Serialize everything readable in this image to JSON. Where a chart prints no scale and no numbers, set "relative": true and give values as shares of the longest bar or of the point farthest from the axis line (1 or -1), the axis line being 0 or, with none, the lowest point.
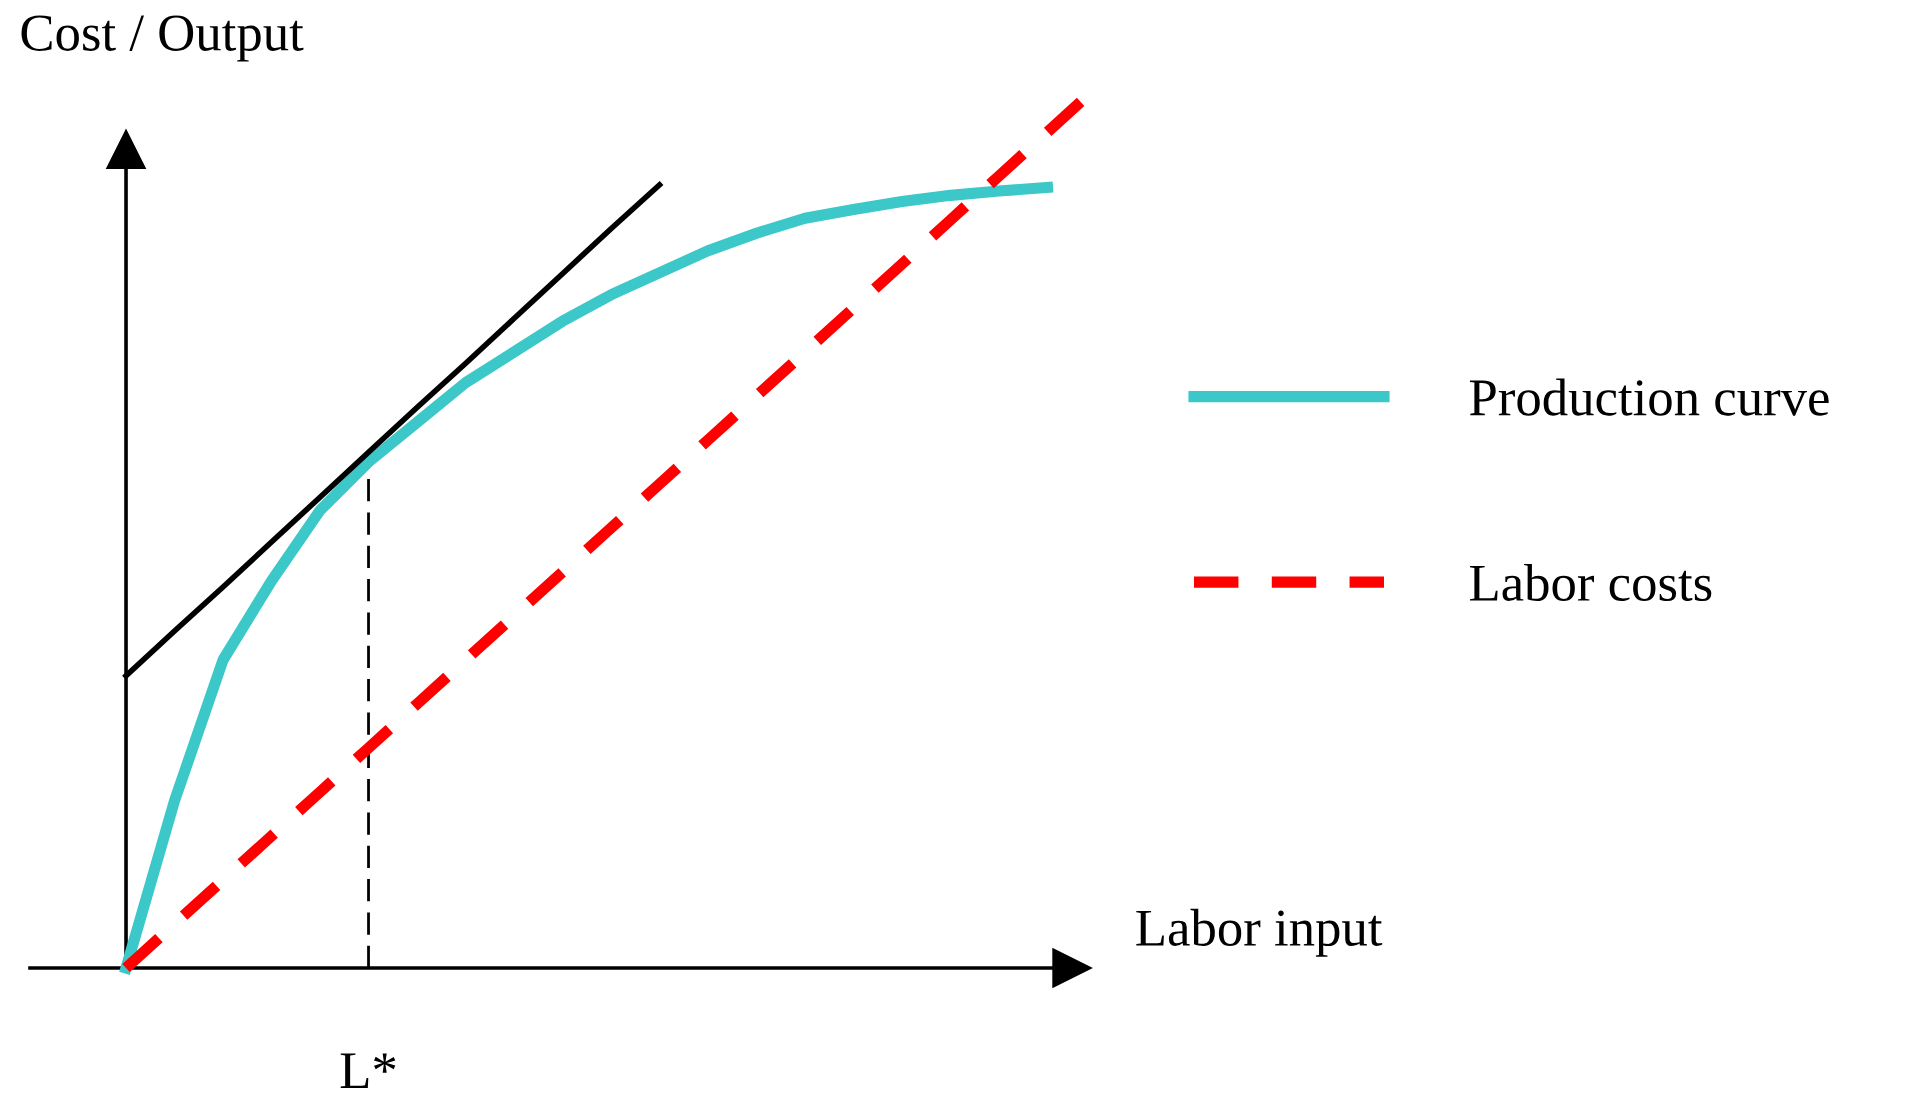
{
  "chart_data": {
    "type": "line",
    "relative": true,
    "xlabel": "Labor input",
    "ylabel": "Cost / Output",
    "legend": "right",
    "categories": [
      null,
      null,
      null,
      null,
      null,
      null,
      null,
      null,
      null,
      null,
      null,
      null,
      null,
      null,
      null,
      null,
      null,
      null,
      null,
      null,
      null
    ],
    "series": [
      {
        "name": "Production curve",
        "color": "#3cc8c8",
        "line_style": "solid",
        "values": [
          0,
          0.19,
          0.35,
          0.44,
          0.52,
          0.575,
          0.62,
          0.665,
          0.7,
          0.735,
          0.765,
          0.79,
          0.815,
          0.835,
          0.852,
          0.862,
          0.871,
          0.878,
          0.883,
          0.887,
          null
        ]
      },
      {
        "name": "Labor costs",
        "color": "#ff0000",
        "line_style": "dashed",
        "values": [
          0,
          0.05,
          0.1,
          0.15,
          0.2,
          0.25,
          0.3,
          0.35,
          0.4,
          0.45,
          0.5,
          0.55,
          0.6,
          0.65,
          0.7,
          0.75,
          0.8,
          0.85,
          0.9,
          0.95,
          1
        ]
      },
      {
        "color": "#000000",
        "line_style": "solid",
        "values": [
          0.332,
          0.383,
          0.433,
          0.484,
          0.535,
          0.586,
          0.637,
          0.687,
          0.738,
          0.789,
          0.84,
          0.89,
          null,
          null,
          null,
          null,
          null,
          null,
          null,
          null,
          null
        ]
      }
    ],
    "annotations": [
      "L*"
    ]
  }
}
